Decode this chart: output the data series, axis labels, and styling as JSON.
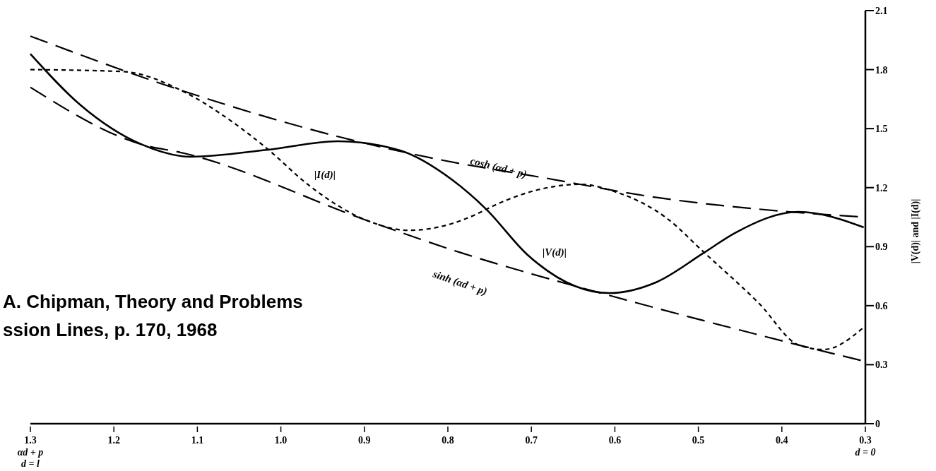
{
  "chart_data": {
    "type": "line",
    "xlabel": "αd + p",
    "ylabel": "|V(d)| and |I(d)|",
    "xlim": [
      1.3,
      0.3
    ],
    "ylim": [
      0,
      2.1
    ],
    "xticks": [
      1.3,
      1.2,
      1.1,
      {
        "value": 1.0,
        "label": "1.0"
      },
      0.9,
      0.8,
      0.7,
      0.6,
      0.5,
      0.4,
      0.3
    ],
    "yticks": [
      0,
      0.3,
      0.6,
      0.9,
      1.2,
      1.5,
      1.8,
      2.1
    ],
    "grid": false,
    "marker": "none",
    "series": [
      {
        "name": "cosh (αd + p)",
        "color": "#000000",
        "line_style": "dashed",
        "x": [
          1.3,
          1.116,
          0.932,
          0.807,
          0.685,
          0.55,
          0.391,
          0.3
        ],
        "values": [
          1.97,
          1.69,
          1.46,
          1.34,
          1.25,
          1.15,
          1.077,
          1.05
        ]
      },
      {
        "name": "sinh (αd + p)",
        "color": "#000000",
        "line_style": "dashed",
        "x": [
          1.3,
          1.167,
          1.116,
          0.895,
          0.785,
          0.648,
          0.611,
          0.38,
          0.3
        ],
        "values": [
          1.71,
          1.42,
          1.375,
          1.03,
          0.87,
          0.7,
          0.657,
          0.4,
          0.316
        ]
      },
      {
        "name": "|V(d)|",
        "color": "#000000",
        "line_style": "solid",
        "x": [
          1.3,
          1.24,
          1.167,
          1.108,
          1.015,
          0.932,
          0.858,
          0.795,
          0.754,
          0.705,
          0.648,
          0.607,
          0.55,
          0.493,
          0.456,
          0.38,
          0.302
        ],
        "values": [
          1.88,
          1.62,
          1.42,
          1.357,
          1.393,
          1.436,
          1.39,
          1.24,
          1.09,
          0.86,
          0.7,
          0.664,
          0.72,
          0.87,
          0.97,
          1.077,
          0.998
        ]
      },
      {
        "name": "|I(d)|",
        "color": "#000000",
        "line_style": "dotted",
        "x": [
          1.3,
          1.189,
          1.116,
          1.061,
          1.015,
          0.968,
          0.895,
          0.847,
          0.76,
          0.754,
          0.64,
          0.604,
          0.538,
          0.493,
          0.427,
          0.38,
          0.35,
          0.302
        ],
        "values": [
          1.8,
          1.79,
          1.687,
          1.543,
          1.393,
          1.217,
          1.03,
          0.983,
          1.077,
          1.09,
          1.217,
          1.185,
          1.045,
          0.87,
          0.61,
          0.4,
          0.377,
          0.49
        ]
      }
    ],
    "annotations": [
      "d = l",
      "d = 0",
      "A. Chipman, Theory and Problems",
      "ssion Lines, p. 170, 1968"
    ]
  }
}
